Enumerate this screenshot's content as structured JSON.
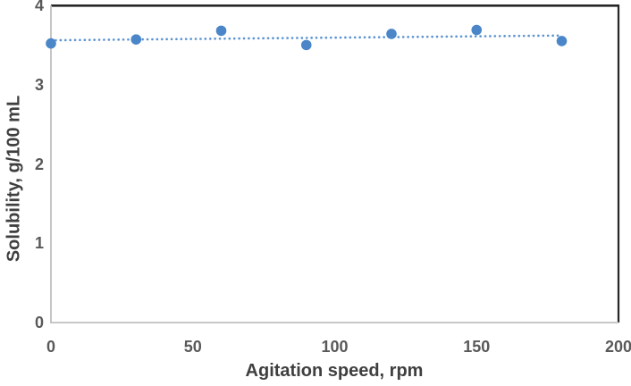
{
  "chart_data": {
    "type": "scatter",
    "title": "",
    "xlabel": "Agitation speed, rpm",
    "ylabel": "Solubility, g/100 mL",
    "x": [
      0,
      30,
      60,
      90,
      120,
      150,
      180
    ],
    "y": [
      3.52,
      3.57,
      3.68,
      3.5,
      3.64,
      3.69,
      3.55
    ],
    "xlim": [
      0,
      200
    ],
    "ylim": [
      0,
      4
    ],
    "x_ticks": [
      0,
      50,
      100,
      150,
      200
    ],
    "y_ticks": [
      0,
      1,
      2,
      3,
      4
    ],
    "grid": false,
    "legend": "none",
    "marker": {
      "shape": "circle",
      "radius_px": 5.8
    },
    "trendline": {
      "type": "linear",
      "style": "dotted",
      "x1": 0,
      "y1": 3.56,
      "x2": 180,
      "y2": 3.62
    }
  },
  "colors": {
    "background": "#FFFFFF",
    "marker": "#4A86C8",
    "trendline": "#5B93D2",
    "axis_line": "#C0C0C0",
    "frame": "#262626",
    "tick_text": "#595959",
    "title_text": "#3F3F3F"
  }
}
